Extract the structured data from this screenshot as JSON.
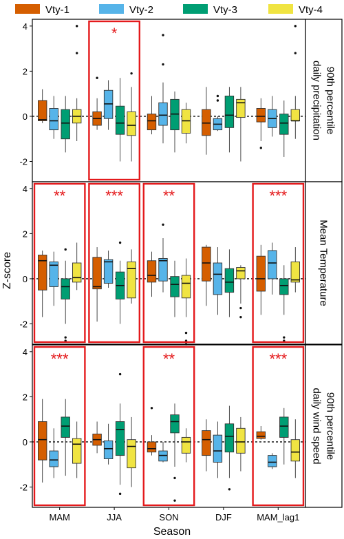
{
  "chart_data": {
    "type": "boxplot",
    "xlabel": "Season",
    "ylabel": "Z-score",
    "categories": [
      "MAM",
      "JJA",
      "SON",
      "DJF",
      "MAM_lag1"
    ],
    "ylim": [
      -2.9,
      4.3
    ],
    "yticks": [
      4,
      2,
      0,
      -2
    ],
    "reference_line": 0,
    "legend": {
      "placement": "top",
      "entries": [
        {
          "name": "Vty-1",
          "color": "#D55E00"
        },
        {
          "name": "Vty-2",
          "color": "#56B4E9"
        },
        {
          "name": "Vty-3",
          "color": "#009E73"
        },
        {
          "name": "Vty-4",
          "color": "#F0E442"
        }
      ]
    },
    "highlight_color": "#E41A1C",
    "panels": [
      {
        "strip_label": [
          "90th percentile",
          "daily precipitation"
        ],
        "significance": [
          {
            "category": "JJA",
            "label": "*"
          }
        ],
        "groups": [
          [
            {
              "min": -0.3,
              "q1": -0.2,
              "median": -0.15,
              "q3": 0.7,
              "max": 1.2,
              "outliers": []
            },
            {
              "min": -1.0,
              "q1": -0.6,
              "median": -0.2,
              "q3": 0.35,
              "max": 0.9,
              "outliers": []
            },
            {
              "min": -1.6,
              "q1": -1.0,
              "median": -0.3,
              "q3": 0.3,
              "max": 0.9,
              "outliers": []
            },
            {
              "min": -1.1,
              "q1": -0.3,
              "median": 0.0,
              "q3": 0.3,
              "max": 0.8,
              "outliers": [
                2.8,
                4.0
              ]
            }
          ],
          [
            {
              "min": -0.6,
              "q1": -0.4,
              "median": -0.1,
              "q3": 0.2,
              "max": 0.8,
              "outliers": [
                1.7
              ]
            },
            {
              "min": -0.6,
              "q1": -0.1,
              "median": 0.55,
              "q3": 1.15,
              "max": 1.6,
              "outliers": []
            },
            {
              "min": -2.0,
              "q1": -0.8,
              "median": -0.3,
              "q3": 0.45,
              "max": 1.7,
              "outliers": []
            },
            {
              "min": -2.0,
              "q1": -0.85,
              "median": -0.4,
              "q3": 0.2,
              "max": 1.3,
              "outliers": [
                1.9
              ]
            }
          ],
          [
            {
              "min": -0.8,
              "q1": -0.6,
              "median": -0.2,
              "q3": 0.1,
              "max": 0.9,
              "outliers": []
            },
            {
              "min": -1.2,
              "q1": -0.4,
              "median": 0.05,
              "q3": 0.6,
              "max": 1.5,
              "outliers": [
                2.3,
                3.6
              ]
            },
            {
              "min": -1.6,
              "q1": -0.6,
              "median": 0.1,
              "q3": 0.75,
              "max": 1.1,
              "outliers": []
            },
            {
              "min": -1.2,
              "q1": -0.75,
              "median": -0.2,
              "q3": 0.3,
              "max": 0.6,
              "outliers": []
            }
          ],
          [
            {
              "min": -1.7,
              "q1": -0.85,
              "median": -0.3,
              "q3": 0.3,
              "max": 1.3,
              "outliers": []
            },
            {
              "min": -0.65,
              "q1": -0.6,
              "median": -0.35,
              "q3": -0.1,
              "max": 0.0,
              "outliers": [
                0.7,
                0.9
              ]
            },
            {
              "min": -1.6,
              "q1": -0.5,
              "median": 0.05,
              "q3": 0.9,
              "max": 1.3,
              "outliers": []
            },
            {
              "min": -2.0,
              "q1": -0.05,
              "median": 0.6,
              "q3": 0.75,
              "max": 1.3,
              "outliers": []
            }
          ],
          [
            {
              "min": -1.1,
              "q1": -0.25,
              "median": 0.0,
              "q3": 0.35,
              "max": 0.8,
              "outliers": [
                -1.4
              ]
            },
            {
              "min": -0.9,
              "q1": -0.5,
              "median": -0.1,
              "q3": 0.3,
              "max": 0.9,
              "outliers": []
            },
            {
              "min": -1.8,
              "q1": -0.8,
              "median": -0.3,
              "q3": 0.1,
              "max": 0.7,
              "outliers": []
            },
            {
              "min": -1.0,
              "q1": -0.2,
              "median": -0.2,
              "q3": 0.3,
              "max": 0.9,
              "outliers": [
                2.8,
                4.0
              ]
            }
          ]
        ]
      },
      {
        "strip_label": [
          "Mean Temperature"
        ],
        "significance": [
          {
            "category": "MAM",
            "label": "**"
          },
          {
            "category": "JJA",
            "label": "***"
          },
          {
            "category": "SON",
            "label": "**"
          },
          {
            "category": "MAM_lag1",
            "label": "***"
          }
        ],
        "groups": [
          [
            {
              "min": -1.7,
              "q1": -0.5,
              "median": 0.8,
              "q3": 1.05,
              "max": 1.25,
              "outliers": []
            },
            {
              "min": -1.2,
              "q1": -0.35,
              "median": 0.6,
              "q3": 0.75,
              "max": 1.2,
              "outliers": []
            },
            {
              "min": -2.0,
              "q1": -0.9,
              "median": -0.35,
              "q3": 0.0,
              "max": 0.8,
              "outliers": [
                1.3,
                -2.6,
                -2.75
              ]
            },
            {
              "min": -0.5,
              "q1": -0.15,
              "median": 0.05,
              "q3": 0.7,
              "max": 1.6,
              "outliers": []
            }
          ],
          [
            {
              "min": -1.9,
              "q1": -0.45,
              "median": -0.35,
              "q3": 0.95,
              "max": 1.4,
              "outliers": []
            },
            {
              "min": -0.4,
              "q1": -0.2,
              "median": 0.75,
              "q3": 0.85,
              "max": 1.25,
              "outliers": []
            },
            {
              "min": -2.0,
              "q1": -0.9,
              "median": -0.3,
              "q3": 0.3,
              "max": 0.8,
              "outliers": [
                1.6
              ]
            },
            {
              "min": -1.1,
              "q1": -0.85,
              "median": 0.45,
              "q3": 0.75,
              "max": 1.3,
              "outliers": []
            }
          ],
          [
            {
              "min": -0.8,
              "q1": -0.15,
              "median": 0.15,
              "q3": 0.8,
              "max": 1.2,
              "outliers": []
            },
            {
              "min": -0.6,
              "q1": -0.1,
              "median": 0.8,
              "q3": 0.9,
              "max": 1.8,
              "outliers": [
                2.4
              ]
            },
            {
              "min": -1.7,
              "q1": -0.8,
              "median": -0.25,
              "q3": 0.1,
              "max": 0.8,
              "outliers": []
            },
            {
              "min": -1.7,
              "q1": -0.85,
              "median": -0.2,
              "q3": 0.15,
              "max": 0.9,
              "outliers": [
                -2.4,
                -2.75,
                -2.9
              ]
            }
          ],
          [
            {
              "min": -1.2,
              "q1": -0.1,
              "median": 0.7,
              "q3": 1.4,
              "max": 1.5,
              "outliers": []
            },
            {
              "min": -1.6,
              "q1": -0.7,
              "median": 0.2,
              "q3": 0.7,
              "max": 1.4,
              "outliers": []
            },
            {
              "min": -1.7,
              "q1": -0.6,
              "median": -0.15,
              "q3": 0.45,
              "max": 1.3,
              "outliers": []
            },
            {
              "min": -1.1,
              "q1": 0.0,
              "median": 0.35,
              "q3": 0.5,
              "max": 0.6,
              "outliers": [
                -1.3,
                -1.7
              ]
            }
          ],
          [
            {
              "min": -1.6,
              "q1": -0.55,
              "median": 0.0,
              "q3": 1.0,
              "max": 1.5,
              "outliers": []
            },
            {
              "min": -0.7,
              "q1": 0.0,
              "median": 0.7,
              "q3": 1.25,
              "max": 1.6,
              "outliers": []
            },
            {
              "min": -1.6,
              "q1": -0.7,
              "median": -0.3,
              "q3": 0.0,
              "max": 0.6,
              "outliers": [
                -2.6,
                -2.75
              ]
            },
            {
              "min": -0.6,
              "q1": -0.15,
              "median": -0.05,
              "q3": 0.75,
              "max": 1.4,
              "outliers": []
            }
          ]
        ]
      },
      {
        "strip_label": [
          "90th percentile",
          "daily wind speed"
        ],
        "significance": [
          {
            "category": "MAM",
            "label": "***"
          },
          {
            "category": "SON",
            "label": "**"
          },
          {
            "category": "MAM_lag1",
            "label": "***"
          }
        ],
        "groups": [
          [
            {
              "min": -1.8,
              "q1": -0.8,
              "median": 0.1,
              "q3": 0.9,
              "max": 1.9,
              "outliers": []
            },
            {
              "min": -1.6,
              "q1": -1.1,
              "median": -0.8,
              "q3": -0.4,
              "max": 0.6,
              "outliers": []
            },
            {
              "min": -1.5,
              "q1": 0.2,
              "median": 0.7,
              "q3": 1.1,
              "max": 1.9,
              "outliers": []
            },
            {
              "min": -1.6,
              "q1": -0.95,
              "median": -0.1,
              "q3": 0.15,
              "max": 0.9,
              "outliers": []
            }
          ],
          [
            {
              "min": -0.5,
              "q1": -0.15,
              "median": 0.1,
              "q3": 0.35,
              "max": 0.9,
              "outliers": []
            },
            {
              "min": -1.0,
              "q1": -0.75,
              "median": -0.3,
              "q3": 0.05,
              "max": 0.8,
              "outliers": []
            },
            {
              "min": -1.9,
              "q1": -0.6,
              "median": 0.55,
              "q3": 0.9,
              "max": 1.7,
              "outliers": [
                3.0,
                -2.3
              ]
            },
            {
              "min": -2.0,
              "q1": -1.15,
              "median": -0.2,
              "q3": 0.1,
              "max": 1.1,
              "outliers": []
            }
          ],
          [
            {
              "min": -0.6,
              "q1": -0.45,
              "median": -0.3,
              "q3": 0.0,
              "max": 0.3,
              "outliers": [
                1.5
              ]
            },
            {
              "min": -0.9,
              "q1": -0.85,
              "median": -0.6,
              "q3": -0.4,
              "max": 0.0,
              "outliers": []
            },
            {
              "min": -1.1,
              "q1": 0.4,
              "median": 0.9,
              "q3": 1.2,
              "max": 1.7,
              "outliers": [
                -1.6,
                -2.6
              ]
            },
            {
              "min": -0.9,
              "q1": -0.5,
              "median": 0.0,
              "q3": 0.2,
              "max": 0.6,
              "outliers": []
            }
          ],
          [
            {
              "min": -1.3,
              "q1": -0.6,
              "median": 0.1,
              "q3": 0.5,
              "max": 1.0,
              "outliers": []
            },
            {
              "min": -1.6,
              "q1": -0.9,
              "median": -0.4,
              "q3": 0.3,
              "max": 0.9,
              "outliers": []
            },
            {
              "min": -1.6,
              "q1": -0.45,
              "median": 0.25,
              "q3": 0.8,
              "max": 1.6,
              "outliers": [
                -2.1
              ]
            },
            {
              "min": -1.3,
              "q1": -0.5,
              "median": 0.0,
              "q3": 0.6,
              "max": 1.1,
              "outliers": []
            }
          ],
          [
            {
              "min": 0.1,
              "q1": 0.15,
              "median": 0.25,
              "q3": 0.45,
              "max": 0.7,
              "outliers": []
            },
            {
              "min": -1.2,
              "q1": -1.1,
              "median": -0.9,
              "q3": -0.6,
              "max": -0.5,
              "outliers": []
            },
            {
              "min": -1.0,
              "q1": 0.2,
              "median": 0.7,
              "q3": 1.1,
              "max": 1.5,
              "outliers": []
            },
            {
              "min": -1.6,
              "q1": -0.85,
              "median": -0.45,
              "q3": 0.1,
              "max": 1.0,
              "outliers": []
            }
          ]
        ]
      }
    ]
  }
}
